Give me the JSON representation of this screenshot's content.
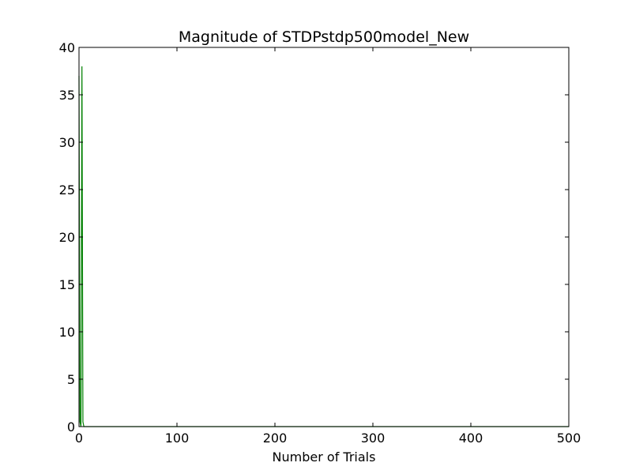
{
  "chart_data": {
    "type": "line",
    "title": "Magnitude of STDPstdp500model_New",
    "xlabel": "Number of Trials",
    "ylabel": "",
    "xlim": [
      0,
      500
    ],
    "ylim": [
      0,
      40
    ],
    "xticks": [
      0,
      100,
      200,
      300,
      400,
      500
    ],
    "yticks": [
      0,
      5,
      10,
      15,
      20,
      25,
      30,
      35,
      40
    ],
    "grid": false,
    "series": [
      {
        "color": "#008000",
        "x": [
          0,
          1,
          2,
          3,
          4,
          5,
          6,
          10,
          50,
          100,
          200,
          300,
          400,
          500
        ],
        "values": [
          37,
          0.5,
          0,
          38,
          0.5,
          0,
          0,
          0,
          0,
          0,
          0,
          0,
          0,
          0
        ]
      }
    ]
  }
}
